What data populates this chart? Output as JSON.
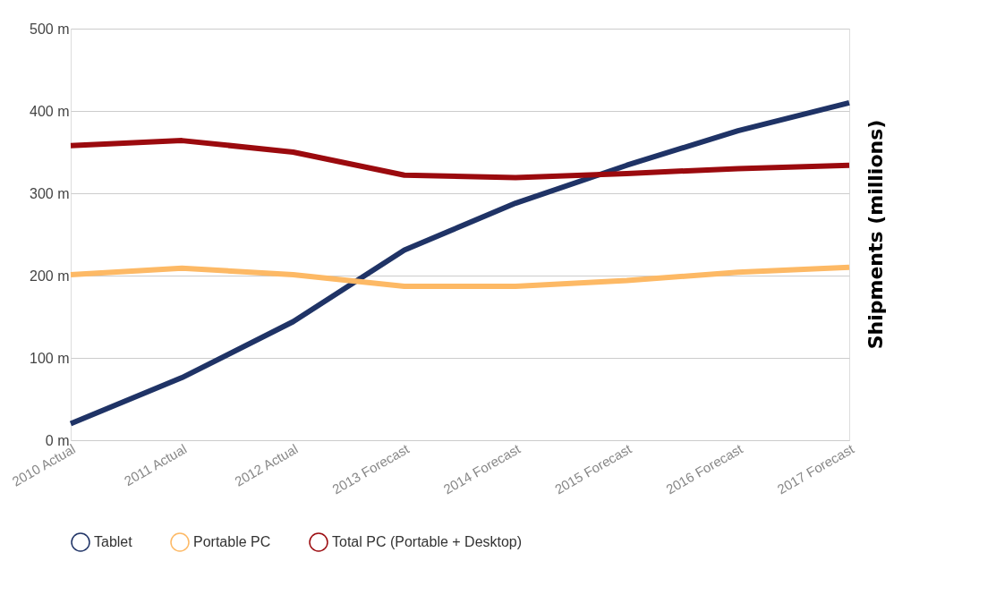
{
  "chart_data": {
    "type": "line",
    "categories": [
      "2010 Actual",
      "2011 Actual",
      "2012 Actual",
      "2013 Forecast",
      "2014 Forecast",
      "2015 Forecast",
      "2016 Forecast",
      "2017 Forecast"
    ],
    "y2label": "Shipments (millions)",
    "ylim": [
      0,
      500
    ],
    "yticks": [
      {
        "value": 0,
        "label": "0 m"
      },
      {
        "value": 100,
        "label": "100 m"
      },
      {
        "value": 200,
        "label": "200 m"
      },
      {
        "value": 300,
        "label": "300 m"
      },
      {
        "value": 400,
        "label": "400 m"
      },
      {
        "value": 500,
        "label": "500 m"
      }
    ],
    "grid": "y",
    "legend": "bottom",
    "marker": "none",
    "line_style": "solid",
    "series": [
      {
        "name": "Tablet",
        "color": "#1f3366",
        "values": [
          20,
          76,
          144,
          231,
          288,
          334,
          376,
          410
        ]
      },
      {
        "name": "Portable PC",
        "color": "#fdb965",
        "values": [
          201,
          209,
          201,
          187,
          187,
          194,
          204,
          210
        ]
      },
      {
        "name": "Total PC (Portable + Desktop)",
        "color": "#9b0a0e",
        "values": [
          358,
          364,
          350,
          322,
          319,
          324,
          330,
          334
        ]
      }
    ]
  }
}
